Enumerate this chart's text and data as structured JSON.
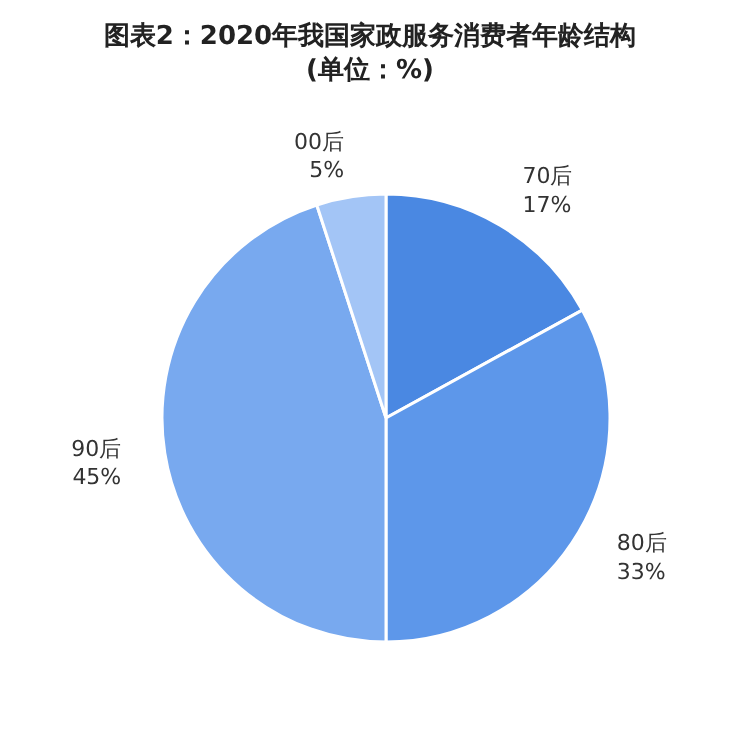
{
  "chart_data": {
    "type": "pie",
    "title": "图表2：2020年我国家政服务消费者年龄结构",
    "subtitle": "(单位：%)",
    "categories": [
      "70后",
      "80后",
      "90后",
      "00后"
    ],
    "values": [
      17,
      33,
      45,
      5
    ],
    "colors": [
      "#4a88e2",
      "#5d97ea",
      "#78a9ef",
      "#a3c5f6"
    ],
    "value_labels": [
      "17%",
      "33%",
      "45%",
      "5%"
    ],
    "legend": false
  }
}
